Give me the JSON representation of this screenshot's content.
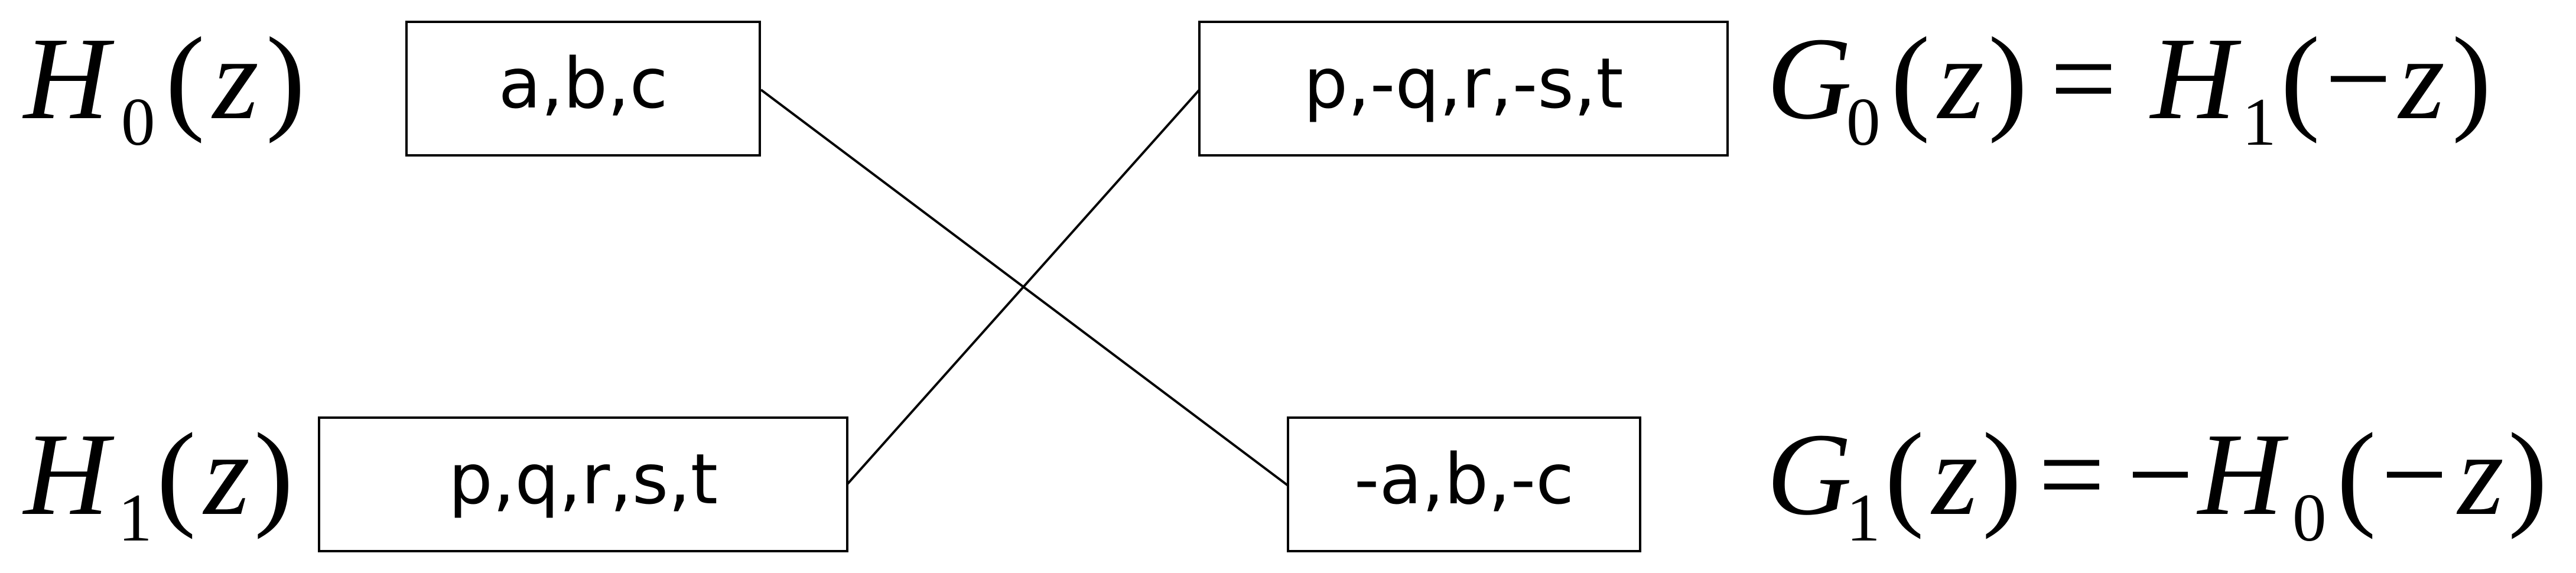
{
  "diagram": {
    "boxes": {
      "h0": "a,b,c",
      "h1": "p,q,r,s,t",
      "g0": "p,-q,r,-s,t",
      "g1": "-a,b,-c"
    },
    "labels": {
      "h0": {
        "letter": "H",
        "sub": "0",
        "lparen": "(",
        "arg": "z",
        "rparen": ")"
      },
      "h1": {
        "letter": "H",
        "sub": "1",
        "lparen": "(",
        "arg": "z",
        "rparen": ")"
      },
      "g0": {
        "letter": "G",
        "sub": "0",
        "lparen": "(",
        "arg": "z",
        "rparen": ")",
        "eq": "=",
        "rhs_letter": "H",
        "rhs_sub": "1",
        "rhs_lparen": "(",
        "rhs_minus": "−",
        "rhs_arg": "z",
        "rhs_rparen": ")"
      },
      "g1": {
        "letter": "G",
        "sub": "1",
        "lparen": "(",
        "arg": "z",
        "rparen": ")",
        "eq": "=",
        "neg": "−",
        "rhs_letter": "H",
        "rhs_sub": "0",
        "rhs_lparen": "(",
        "rhs_minus": "−",
        "rhs_arg": "z",
        "rhs_rparen": ")"
      }
    }
  }
}
